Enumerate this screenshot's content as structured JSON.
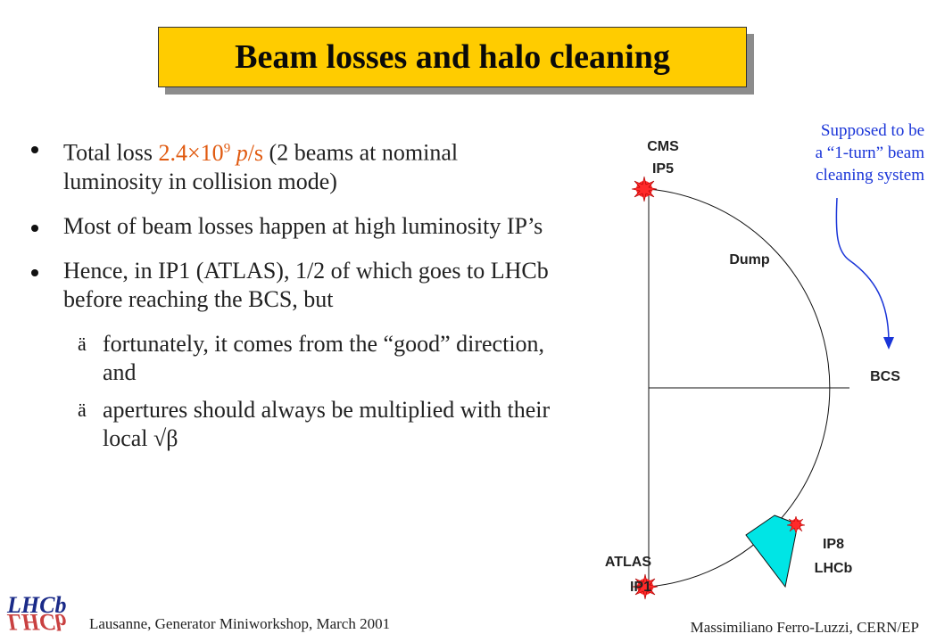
{
  "title": "Beam losses and halo cleaning",
  "bullets": {
    "b1_pre": "Total loss ",
    "b1_value": "2.4×10",
    "b1_exp": "9",
    "b1_unit_p": "p",
    "b1_unit_rest": "/s",
    "b1_rest": " (2 beams at nominal luminosity in collision mode)",
    "b2": "Most of beam losses happen at high luminosity IP’s",
    "b3": "Hence, in IP1 (ATLAS), 1/2 of which goes to LHCb before reaching the BCS, but",
    "sub1": "fortunately, it comes from the “good” direction, and",
    "sub2": "apertures should always be multiplied with their local √β"
  },
  "diagram": {
    "cms_line1": "CMS",
    "cms_line2": "IP5",
    "dump": "Dump",
    "bcs": "BCS",
    "ip8_line1": "IP8",
    "ip8_line2": "LHCb",
    "atlas_line1": "ATLAS",
    "atlas_line2": "IP1",
    "note_line1": "Supposed to be",
    "note_line2": "a “1-turn” beam",
    "note_line3": "cleaning system"
  },
  "footer": {
    "left": "Lausanne, Generator Miniworkshop, March 2001",
    "right": "Massimiliano Ferro-Luzzi, CERN/EP"
  },
  "logo": {
    "text_top": "LHCb",
    "text_bottom": "LHCb"
  },
  "colors": {
    "title_bg": "#ffcc00",
    "loss_value": "#e05a10",
    "note_text": "#1a35d8",
    "detector": "#00e5e5",
    "ip_marker": "#ff2a2a"
  }
}
